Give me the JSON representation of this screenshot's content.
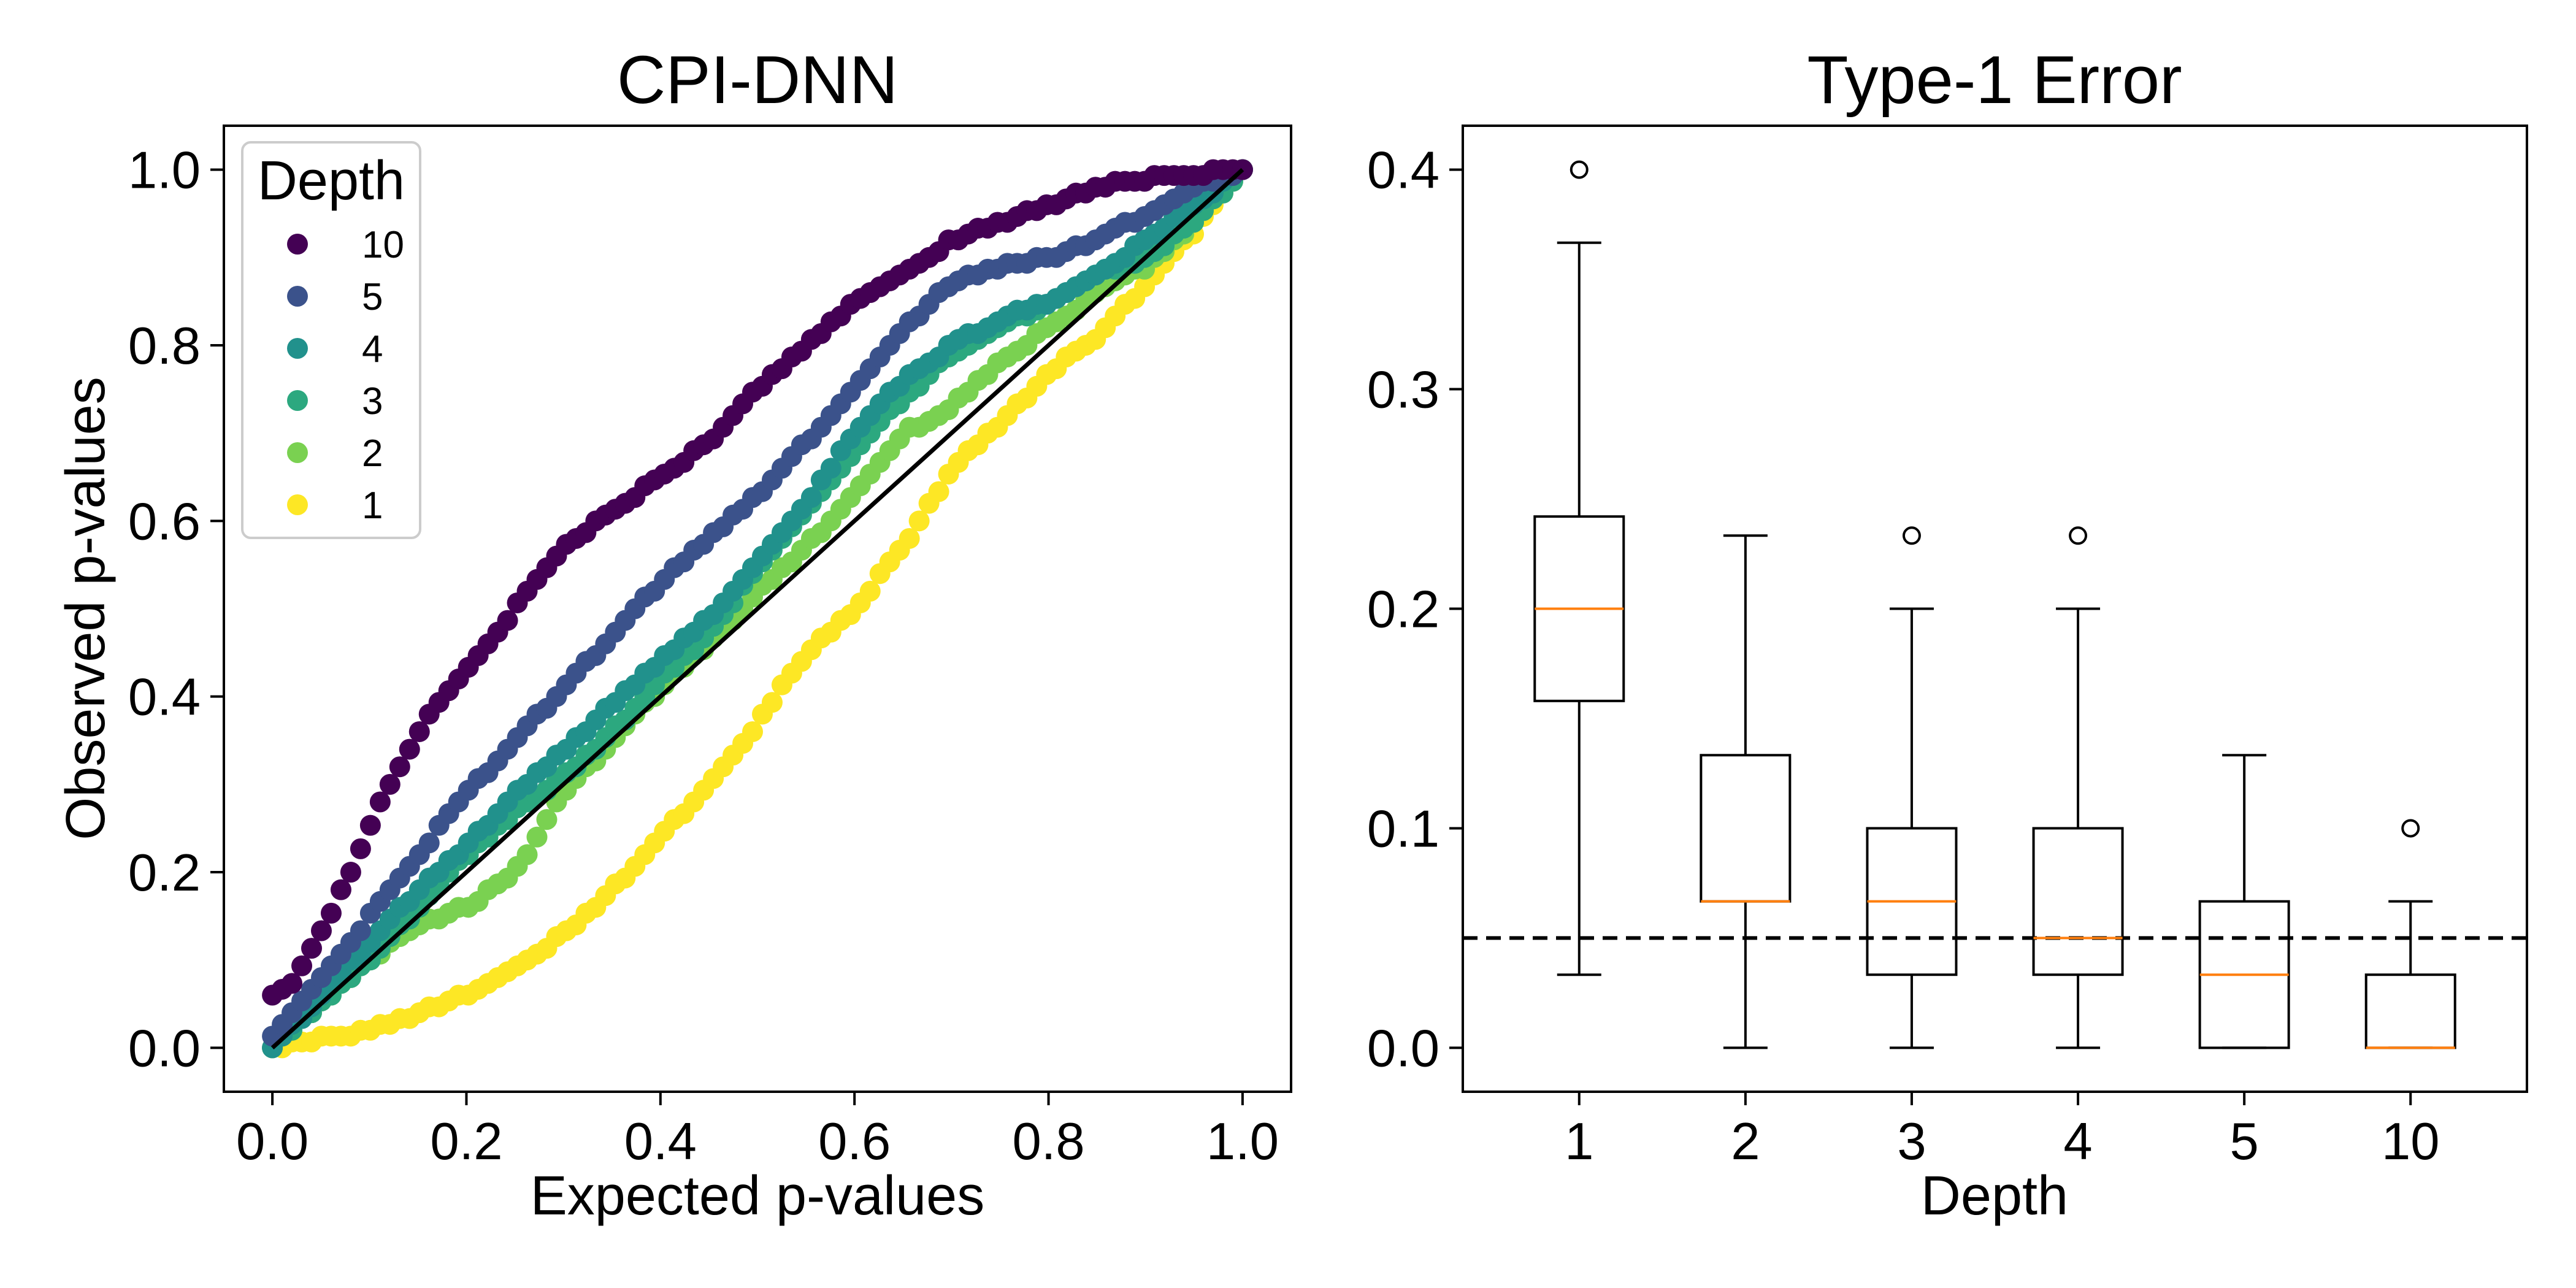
{
  "chart_data": [
    {
      "type": "scatter",
      "title": "CPI-DNN",
      "xlabel": "Expected p-values",
      "ylabel": "Observed p-values",
      "xlim": [
        -0.05,
        1.05
      ],
      "ylim": [
        -0.05,
        1.05
      ],
      "xticks": [
        "0.0",
        "0.2",
        "0.4",
        "0.6",
        "0.8",
        "1.0"
      ],
      "yticks": [
        "0.0",
        "0.2",
        "0.4",
        "0.6",
        "0.8",
        "1.0"
      ],
      "legend": {
        "title": "Depth",
        "position": "top-left"
      },
      "reference_line": {
        "x": [
          0,
          1
        ],
        "y": [
          0,
          1
        ],
        "color": "#000000"
      },
      "series": [
        {
          "name": "10",
          "color": "#440154",
          "anchors_x": [
            0,
            0.02,
            0.05,
            0.08,
            0.12,
            0.16,
            0.2,
            0.25,
            0.3,
            0.35,
            0.4,
            0.45,
            0.5,
            0.55,
            0.6,
            0.65,
            0.7,
            0.75,
            0.8,
            0.85,
            0.9,
            0.95,
            1.0
          ],
          "anchors_y": [
            0.06,
            0.07,
            0.13,
            0.2,
            0.3,
            0.38,
            0.43,
            0.5,
            0.57,
            0.61,
            0.65,
            0.69,
            0.75,
            0.8,
            0.85,
            0.88,
            0.92,
            0.94,
            0.96,
            0.98,
            0.99,
            0.995,
            1.0
          ]
        },
        {
          "name": "5",
          "color": "#3b528b",
          "anchors_x": [
            0,
            0.03,
            0.06,
            0.1,
            0.15,
            0.2,
            0.25,
            0.3,
            0.35,
            0.4,
            0.45,
            0.5,
            0.55,
            0.6,
            0.65,
            0.7,
            0.75,
            0.8,
            0.85,
            0.9,
            0.95,
            1.0
          ],
          "anchors_y": [
            0.01,
            0.05,
            0.09,
            0.15,
            0.22,
            0.29,
            0.35,
            0.41,
            0.47,
            0.53,
            0.58,
            0.63,
            0.69,
            0.75,
            0.82,
            0.87,
            0.89,
            0.9,
            0.92,
            0.95,
            0.98,
            1.0
          ]
        },
        {
          "name": "4",
          "color": "#21918c",
          "anchors_x": [
            0,
            0.05,
            0.1,
            0.15,
            0.2,
            0.25,
            0.3,
            0.35,
            0.4,
            0.45,
            0.5,
            0.55,
            0.6,
            0.65,
            0.7,
            0.75,
            0.8,
            0.85,
            0.9,
            0.95,
            1.0
          ],
          "anchors_y": [
            0.0,
            0.06,
            0.12,
            0.18,
            0.23,
            0.29,
            0.34,
            0.39,
            0.44,
            0.49,
            0.55,
            0.62,
            0.7,
            0.76,
            0.8,
            0.83,
            0.85,
            0.88,
            0.92,
            0.96,
            1.0
          ]
        },
        {
          "name": "3",
          "color": "#2ca87f",
          "anchors_x": [
            0,
            0.05,
            0.1,
            0.15,
            0.2,
            0.25,
            0.3,
            0.35,
            0.4,
            0.45,
            0.5,
            0.55,
            0.6,
            0.65,
            0.7,
            0.75,
            0.8,
            0.85,
            0.9,
            0.95,
            1.0
          ],
          "anchors_y": [
            0.0,
            0.05,
            0.1,
            0.16,
            0.22,
            0.27,
            0.31,
            0.36,
            0.42,
            0.47,
            0.55,
            0.61,
            0.68,
            0.74,
            0.79,
            0.82,
            0.85,
            0.88,
            0.9,
            0.94,
            1.0
          ]
        },
        {
          "name": "2",
          "color": "#7ad151",
          "anchors_x": [
            0,
            0.05,
            0.1,
            0.15,
            0.2,
            0.25,
            0.3,
            0.35,
            0.4,
            0.45,
            0.5,
            0.55,
            0.6,
            0.65,
            0.7,
            0.75,
            0.8,
            0.85,
            0.9,
            0.95,
            1.0
          ],
          "anchors_y": [
            0.0,
            0.05,
            0.1,
            0.14,
            0.16,
            0.2,
            0.29,
            0.35,
            0.41,
            0.46,
            0.52,
            0.57,
            0.63,
            0.7,
            0.73,
            0.78,
            0.82,
            0.86,
            0.89,
            0.94,
            1.0
          ]
        },
        {
          "name": "1",
          "color": "#fde725",
          "anchors_x": [
            0,
            0.05,
            0.1,
            0.15,
            0.2,
            0.25,
            0.3,
            0.35,
            0.4,
            0.45,
            0.5,
            0.55,
            0.6,
            0.65,
            0.7,
            0.75,
            0.8,
            0.85,
            0.9,
            0.95,
            1.0
          ],
          "anchors_y": [
            0.0,
            0.01,
            0.02,
            0.04,
            0.06,
            0.09,
            0.13,
            0.18,
            0.24,
            0.3,
            0.37,
            0.45,
            0.5,
            0.57,
            0.66,
            0.71,
            0.77,
            0.81,
            0.87,
            0.93,
            1.0
          ]
        }
      ]
    },
    {
      "type": "boxplot",
      "title": "Type-1 Error",
      "xlabel": "Depth",
      "ylabel": "",
      "ylim": [
        -0.02,
        0.42
      ],
      "yticks": [
        "0.0",
        "0.1",
        "0.2",
        "0.3",
        "0.4"
      ],
      "reference_line": {
        "y": 0.05,
        "style": "dashed",
        "color": "#000000"
      },
      "median_color": "#ff7f0e",
      "boxes": [
        {
          "label": "1",
          "whisker_low": 0.0333,
          "q1": 0.158,
          "median": 0.2,
          "q3": 0.242,
          "whisker_high": 0.3667,
          "outliers": [
            0.4
          ]
        },
        {
          "label": "2",
          "whisker_low": 0.0,
          "q1": 0.0667,
          "median": 0.0667,
          "q3": 0.1333,
          "whisker_high": 0.2333,
          "outliers": []
        },
        {
          "label": "3",
          "whisker_low": 0.0,
          "q1": 0.0333,
          "median": 0.0667,
          "q3": 0.1,
          "whisker_high": 0.2,
          "outliers": [
            0.2333
          ]
        },
        {
          "label": "4",
          "whisker_low": 0.0,
          "q1": 0.0333,
          "median": 0.05,
          "q3": 0.1,
          "whisker_high": 0.2,
          "outliers": [
            0.2333
          ]
        },
        {
          "label": "5",
          "whisker_low": 0.0,
          "q1": 0.0,
          "median": 0.0333,
          "q3": 0.0667,
          "whisker_high": 0.1333,
          "outliers": []
        },
        {
          "label": "10",
          "whisker_low": 0.0,
          "q1": 0.0,
          "median": 0.0,
          "q3": 0.0333,
          "whisker_high": 0.0667,
          "outliers": [
            0.1
          ]
        }
      ]
    }
  ]
}
